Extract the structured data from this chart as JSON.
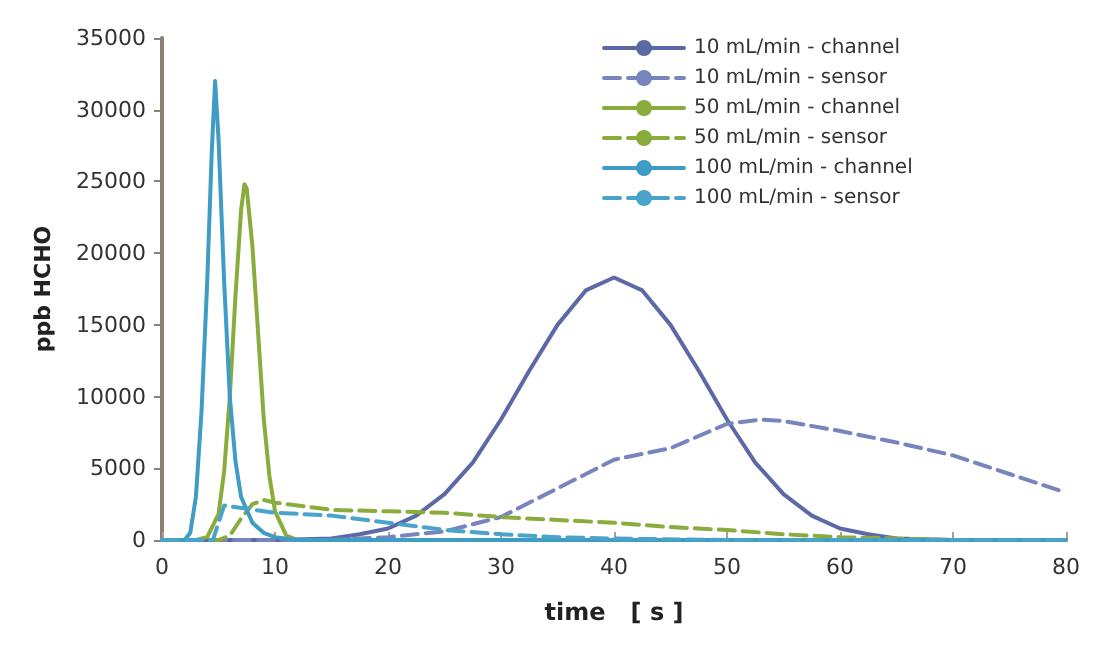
{
  "chart_data": {
    "type": "line",
    "xlabel": "time   [ s ]",
    "ylabel": "ppb HCHO",
    "xlim": [
      0,
      80
    ],
    "xticks": [
      0,
      10,
      20,
      30,
      40,
      50,
      60,
      70,
      80
    ],
    "ylim": [
      0,
      35000
    ],
    "yticks": [
      0,
      5000,
      10000,
      15000,
      20000,
      25000,
      30000,
      35000
    ],
    "grid": false,
    "legend": "top",
    "marker": "none",
    "line_style": "solid",
    "series": [
      {
        "name": "10 mL/min - channel",
        "color": "#5b6aa6",
        "x": [
          0,
          10,
          15,
          17.5,
          20,
          22.5,
          25,
          27.5,
          30,
          32.5,
          35,
          37.5,
          40,
          42.5,
          45,
          47.5,
          50,
          52.5,
          55,
          57.5,
          60,
          62.5,
          65,
          70,
          80
        ],
        "values": [
          0,
          0,
          100,
          400,
          800,
          1700,
          3200,
          5400,
          8400,
          11800,
          15000,
          17400,
          18300,
          17400,
          15000,
          11800,
          8400,
          5400,
          3200,
          1700,
          800,
          400,
          100,
          0,
          0
        ]
      },
      {
        "name": "10 mL/min - sensor",
        "color": "#7784bd",
        "line_style": "dashed",
        "x": [
          0,
          15,
          20,
          25,
          30,
          35,
          40,
          45,
          50,
          53,
          55,
          60,
          65,
          70,
          75,
          80
        ],
        "values": [
          0,
          0,
          200,
          600,
          1600,
          3600,
          5600,
          6400,
          8100,
          8400,
          8300,
          7600,
          6800,
          5900,
          4600,
          3300
        ]
      },
      {
        "name": "50 mL/min - channel",
        "color": "#8aac3c",
        "x": [
          0,
          3,
          4,
          5,
          5.5,
          6,
          6.5,
          7,
          7.3,
          7.5,
          8,
          8.5,
          9,
          9.5,
          10,
          11,
          12,
          80
        ],
        "values": [
          0,
          0,
          200,
          1800,
          4800,
          10000,
          17000,
          23000,
          24800,
          24500,
          20500,
          14500,
          8500,
          4500,
          2000,
          300,
          0,
          0
        ]
      },
      {
        "name": "50 mL/min - sensor",
        "color": "#8aac3c",
        "line_style": "dashed",
        "x": [
          0,
          5,
          6,
          7,
          8,
          9,
          10,
          15,
          20,
          25,
          30,
          35,
          40,
          45,
          50,
          55,
          60,
          65,
          70,
          80
        ],
        "values": [
          0,
          0,
          300,
          1500,
          2500,
          2800,
          2600,
          2100,
          2000,
          1900,
          1600,
          1400,
          1200,
          900,
          700,
          400,
          200,
          100,
          0,
          0
        ]
      },
      {
        "name": "100 mL/min - channel",
        "color": "#3f9cc4",
        "x": [
          0,
          2,
          2.5,
          3,
          3.5,
          4,
          4.4,
          4.7,
          5,
          5.5,
          6,
          6.5,
          7,
          8,
          9,
          10,
          12,
          80
        ],
        "values": [
          0,
          0,
          500,
          3000,
          9000,
          18000,
          27000,
          32000,
          28000,
          18000,
          10000,
          5500,
          3000,
          1200,
          500,
          200,
          0,
          0
        ]
      },
      {
        "name": "100 mL/min - sensor",
        "color": "#4aa3cb",
        "line_style": "dashed",
        "x": [
          0,
          4.5,
          5.5,
          10,
          15,
          20,
          25,
          30,
          35,
          40,
          50,
          80
        ],
        "values": [
          0,
          0,
          2400,
          1900,
          1700,
          1200,
          700,
          400,
          200,
          100,
          0,
          0
        ]
      }
    ]
  }
}
